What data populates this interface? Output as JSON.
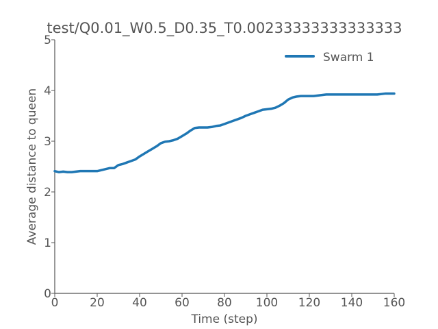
{
  "chart_data": {
    "type": "line",
    "title": "test/Q0.01_W0.5_D0.35_T0.00233333333333333",
    "xlabel": "Time (step)",
    "ylabel": "Average distance to queen",
    "xlim": [
      0,
      160
    ],
    "ylim": [
      0,
      5
    ],
    "xticks": [
      0,
      20,
      40,
      60,
      80,
      100,
      120,
      140,
      160
    ],
    "yticks": [
      0,
      1,
      2,
      3,
      4,
      5
    ],
    "grid": false,
    "legend_position": "top-right",
    "series": [
      {
        "name": "Swarm 1",
        "color": "#1f77b4",
        "x": [
          0,
          2,
          4,
          6,
          8,
          10,
          12,
          14,
          16,
          18,
          20,
          22,
          24,
          26,
          28,
          30,
          32,
          34,
          36,
          38,
          40,
          42,
          44,
          46,
          48,
          50,
          52,
          54,
          56,
          58,
          60,
          62,
          64,
          66,
          68,
          70,
          72,
          74,
          76,
          78,
          80,
          82,
          84,
          86,
          88,
          90,
          92,
          94,
          96,
          98,
          100,
          102,
          104,
          106,
          108,
          110,
          112,
          114,
          116,
          118,
          120,
          122,
          124,
          126,
          128,
          130,
          132,
          134,
          136,
          138,
          140,
          142,
          144,
          146,
          148,
          150,
          152,
          154,
          156,
          158,
          160
        ],
        "y": [
          2.41,
          2.39,
          2.4,
          2.39,
          2.39,
          2.4,
          2.41,
          2.41,
          2.41,
          2.41,
          2.41,
          2.43,
          2.45,
          2.47,
          2.47,
          2.53,
          2.55,
          2.58,
          2.61,
          2.64,
          2.7,
          2.75,
          2.8,
          2.85,
          2.9,
          2.96,
          2.99,
          3.0,
          3.02,
          3.05,
          3.1,
          3.15,
          3.21,
          3.26,
          3.27,
          3.27,
          3.27,
          3.28,
          3.3,
          3.31,
          3.34,
          3.37,
          3.4,
          3.43,
          3.46,
          3.5,
          3.53,
          3.56,
          3.59,
          3.62,
          3.63,
          3.64,
          3.66,
          3.7,
          3.75,
          3.82,
          3.86,
          3.88,
          3.89,
          3.89,
          3.89,
          3.89,
          3.9,
          3.91,
          3.92,
          3.92,
          3.92,
          3.92,
          3.92,
          3.92,
          3.92,
          3.92,
          3.92,
          3.92,
          3.92,
          3.92,
          3.92,
          3.93,
          3.94,
          3.94,
          3.94
        ]
      }
    ]
  }
}
